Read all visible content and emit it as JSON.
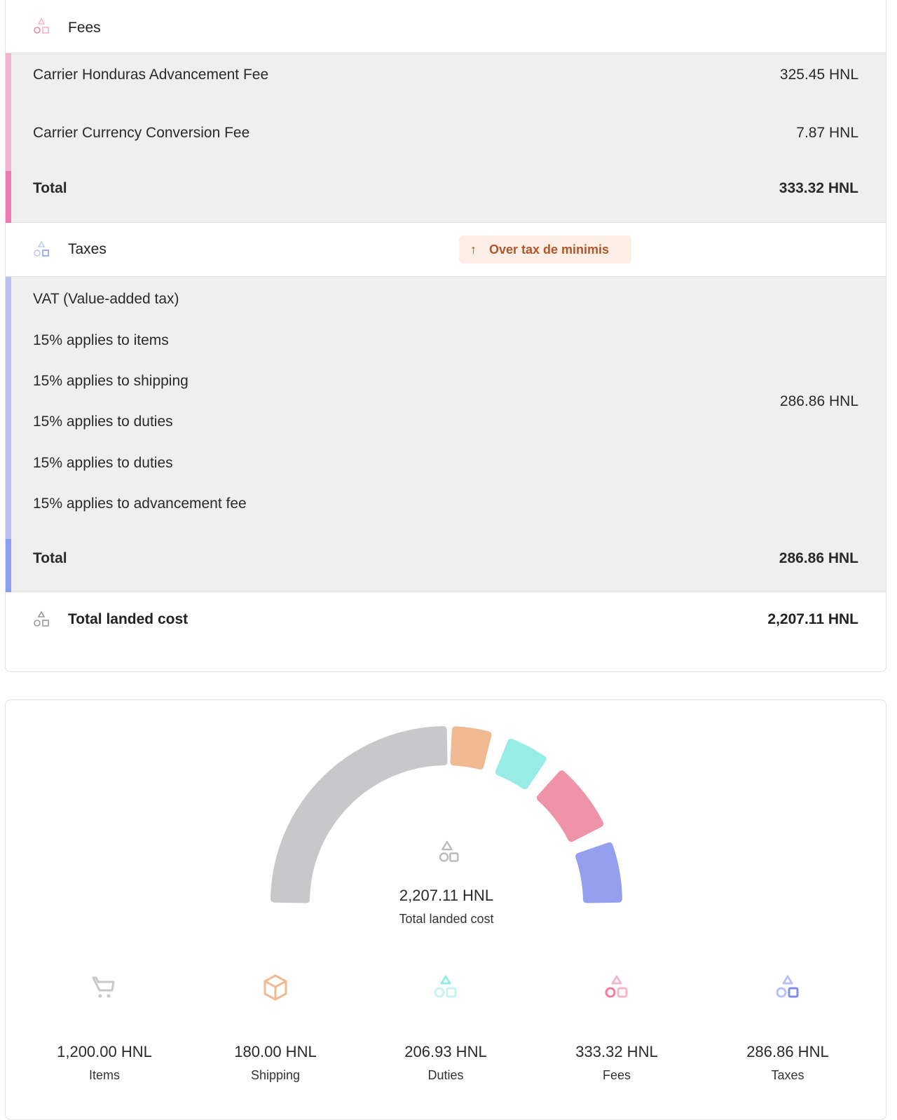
{
  "fees": {
    "label": "Fees",
    "items": [
      {
        "name": "Carrier Honduras Advancement Fee",
        "amount": "325.45 HNL"
      },
      {
        "name": "Carrier Currency Conversion Fee",
        "amount": "7.87 HNL"
      }
    ],
    "total_label": "Total",
    "total": "333.32 HNL",
    "icon": "shapes-icon"
  },
  "taxes": {
    "label": "Taxes",
    "badge": "Over tax de minimis",
    "badge_icon": "arrow-up-icon",
    "title": "VAT (Value-added tax)",
    "lines": [
      "15% applies to items",
      "15% applies to shipping",
      "15% applies to duties",
      "15% applies to duties",
      "15% applies to advancement fee"
    ],
    "amount": "286.86 HNL",
    "total_label": "Total",
    "total": "286.86 HNL"
  },
  "landed": {
    "label": "Total landed cost",
    "amount": "2,207.11 HNL"
  },
  "summary": {
    "total": "2,207.11 HNL",
    "total_label": "Total landed cost",
    "categories": [
      {
        "label": "Items",
        "amount": "1,200.00 HNL",
        "value": 1200,
        "color": "#c8c8ca",
        "icon": "cart-icon"
      },
      {
        "label": "Shipping",
        "amount": "180.00 HNL",
        "value": 180,
        "color": "#f0b992",
        "icon": "box-icon"
      },
      {
        "label": "Duties",
        "amount": "206.93 HNL",
        "value": 206.93,
        "color": "#98ece6",
        "icon": "shapes-icon"
      },
      {
        "label": "Fees",
        "amount": "333.32 HNL",
        "value": 333.32,
        "color": "#ef93a8",
        "icon": "shapes-icon"
      },
      {
        "label": "Taxes",
        "amount": "286.86 HNL",
        "value": 286.86,
        "color": "#94a0ee",
        "icon": "shapes-icon"
      }
    ]
  },
  "colors": {
    "fees_bar": "#f0b4cf",
    "fees_total_bar": "#ea7ab4",
    "taxes_bar": "#b9c2ef",
    "taxes_total_bar": "#8c9ef0"
  }
}
